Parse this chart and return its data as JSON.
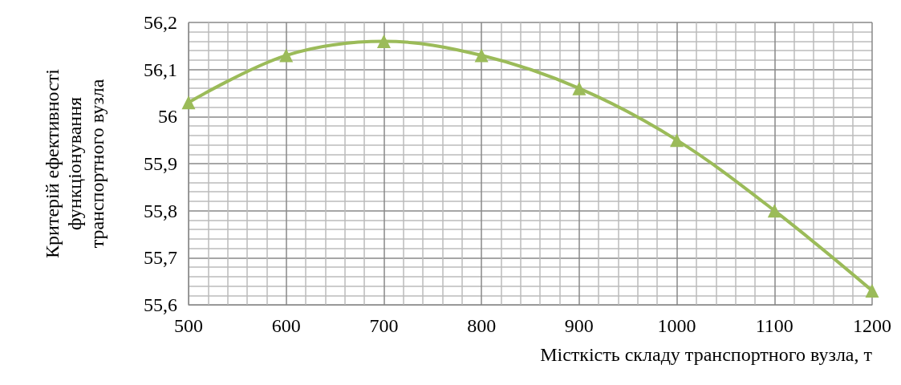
{
  "chart_data": {
    "type": "line",
    "xlabel": "Місткість складу транспортного вузла, т",
    "ylabel": "Критерій ефективності функціонування транспортного вузла",
    "x": [
      500,
      600,
      700,
      800,
      900,
      1000,
      1100,
      1200
    ],
    "series": [
      {
        "color": "#9bbb59",
        "values": [
          56.03,
          56.13,
          56.16,
          56.13,
          56.06,
          55.95,
          55.8,
          55.63
        ]
      }
    ],
    "xlim": [
      500,
      1200
    ],
    "xticks": [
      500,
      600,
      700,
      800,
      900,
      1000,
      1100,
      1200
    ],
    "ylim": [
      55.6,
      56.2
    ],
    "yticks": [
      {
        "value": 55.6,
        "label": "55,6"
      },
      {
        "value": 55.7,
        "label": "55,7"
      },
      {
        "value": 55.8,
        "label": "55,8"
      },
      {
        "value": 55.9,
        "label": "55,9"
      },
      {
        "value": 56,
        "label": "56"
      },
      {
        "value": 56.1,
        "label": "56,1"
      },
      {
        "value": 56.2,
        "label": "56,2"
      }
    ],
    "grid": true,
    "marker": "triangle",
    "line_style": "solid"
  }
}
